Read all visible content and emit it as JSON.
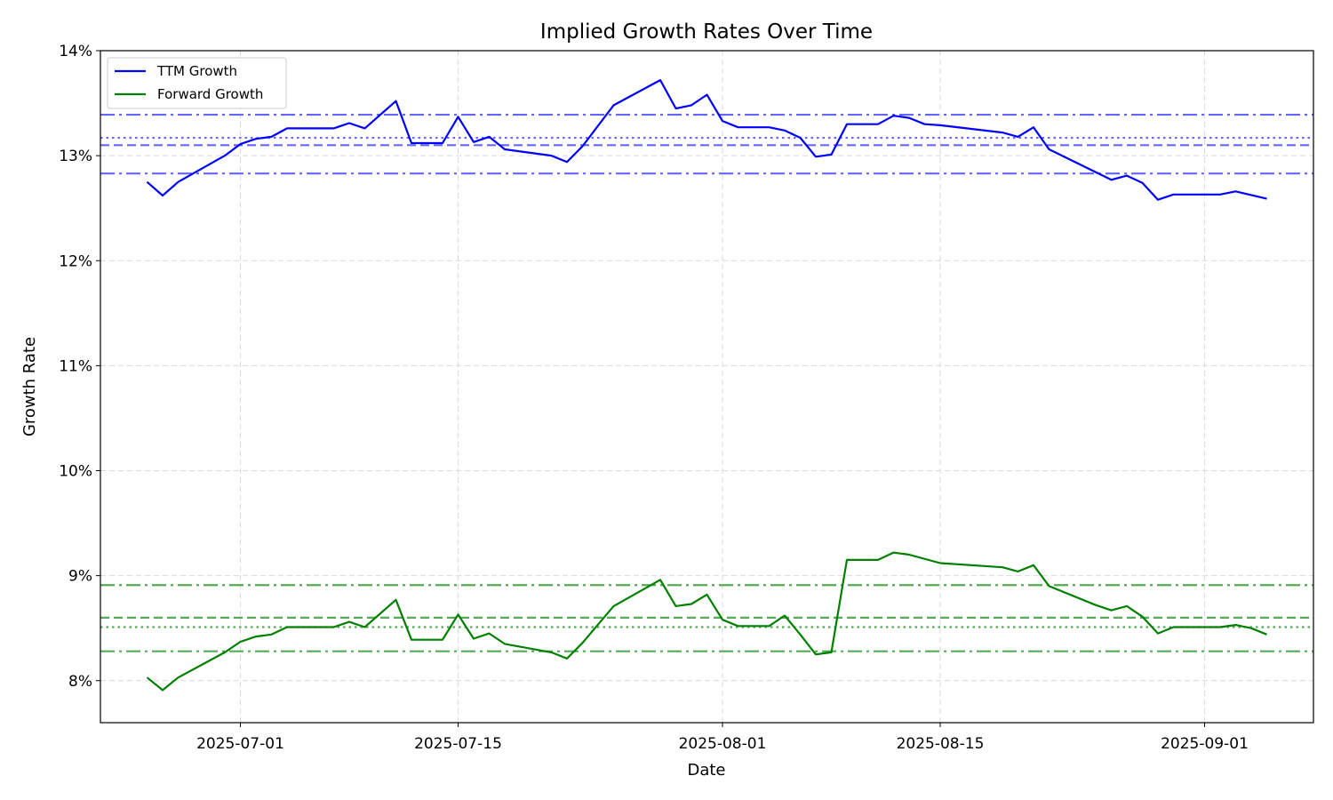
{
  "chart_data": {
    "type": "line",
    "title": "Implied Growth Rates Over Time",
    "xlabel": "Date",
    "ylabel": "Growth Rate",
    "xlim": [
      "2025-06-22",
      "2025-09-08"
    ],
    "ylim": [
      7.6,
      14.0
    ],
    "y_ticks": [
      8,
      9,
      10,
      11,
      12,
      13,
      14
    ],
    "y_tick_format": "%",
    "x_ticks": [
      "2025-07-01",
      "2025-07-15",
      "2025-08-01",
      "2025-08-15",
      "2025-09-01"
    ],
    "grid": true,
    "legend_position": "top-left",
    "series": [
      {
        "name": "TTM Growth",
        "color": "#0000ff",
        "points": [
          [
            "2025-06-25",
            12.75
          ],
          [
            "2025-06-26",
            12.62
          ],
          [
            "2025-06-27",
            12.75
          ],
          [
            "2025-06-30",
            13.0
          ],
          [
            "2025-07-01",
            13.11
          ],
          [
            "2025-07-02",
            13.16
          ],
          [
            "2025-07-03",
            13.18
          ],
          [
            "2025-07-04",
            13.26
          ],
          [
            "2025-07-07",
            13.26
          ],
          [
            "2025-07-08",
            13.31
          ],
          [
            "2025-07-09",
            13.26
          ],
          [
            "2025-07-11",
            13.52
          ],
          [
            "2025-07-12",
            13.12
          ],
          [
            "2025-07-14",
            13.12
          ],
          [
            "2025-07-15",
            13.37
          ],
          [
            "2025-07-16",
            13.13
          ],
          [
            "2025-07-17",
            13.18
          ],
          [
            "2025-07-18",
            13.06
          ],
          [
            "2025-07-21",
            13.0
          ],
          [
            "2025-07-22",
            12.94
          ],
          [
            "2025-07-23",
            13.09
          ],
          [
            "2025-07-25",
            13.48
          ],
          [
            "2025-07-28",
            13.72
          ],
          [
            "2025-07-29",
            13.45
          ],
          [
            "2025-07-30",
            13.48
          ],
          [
            "2025-07-31",
            13.58
          ],
          [
            "2025-08-01",
            13.33
          ],
          [
            "2025-08-02",
            13.27
          ],
          [
            "2025-08-04",
            13.27
          ],
          [
            "2025-08-05",
            13.24
          ],
          [
            "2025-08-06",
            13.17
          ],
          [
            "2025-08-07",
            12.99
          ],
          [
            "2025-08-08",
            13.01
          ],
          [
            "2025-08-09",
            13.3
          ],
          [
            "2025-08-11",
            13.3
          ],
          [
            "2025-08-12",
            13.38
          ],
          [
            "2025-08-13",
            13.36
          ],
          [
            "2025-08-14",
            13.3
          ],
          [
            "2025-08-15",
            13.29
          ],
          [
            "2025-08-19",
            13.22
          ],
          [
            "2025-08-20",
            13.18
          ],
          [
            "2025-08-21",
            13.27
          ],
          [
            "2025-08-22",
            13.06
          ],
          [
            "2025-08-26",
            12.77
          ],
          [
            "2025-08-27",
            12.81
          ],
          [
            "2025-08-28",
            12.74
          ],
          [
            "2025-08-29",
            12.58
          ],
          [
            "2025-08-30",
            12.63
          ],
          [
            "2025-09-02",
            12.63
          ],
          [
            "2025-09-03",
            12.66
          ],
          [
            "2025-09-05",
            12.59
          ]
        ]
      },
      {
        "name": "Forward Growth",
        "color": "#008000",
        "points": [
          [
            "2025-06-25",
            8.03
          ],
          [
            "2025-06-26",
            7.91
          ],
          [
            "2025-06-27",
            8.03
          ],
          [
            "2025-06-30",
            8.27
          ],
          [
            "2025-07-01",
            8.37
          ],
          [
            "2025-07-02",
            8.42
          ],
          [
            "2025-07-03",
            8.44
          ],
          [
            "2025-07-04",
            8.51
          ],
          [
            "2025-07-07",
            8.51
          ],
          [
            "2025-07-08",
            8.56
          ],
          [
            "2025-07-09",
            8.51
          ],
          [
            "2025-07-11",
            8.77
          ],
          [
            "2025-07-12",
            8.39
          ],
          [
            "2025-07-14",
            8.39
          ],
          [
            "2025-07-15",
            8.63
          ],
          [
            "2025-07-16",
            8.4
          ],
          [
            "2025-07-17",
            8.45
          ],
          [
            "2025-07-18",
            8.35
          ],
          [
            "2025-07-21",
            8.27
          ],
          [
            "2025-07-22",
            8.21
          ],
          [
            "2025-07-23",
            8.36
          ],
          [
            "2025-07-25",
            8.71
          ],
          [
            "2025-07-28",
            8.96
          ],
          [
            "2025-07-29",
            8.71
          ],
          [
            "2025-07-30",
            8.73
          ],
          [
            "2025-07-31",
            8.82
          ],
          [
            "2025-08-01",
            8.58
          ],
          [
            "2025-08-02",
            8.52
          ],
          [
            "2025-08-04",
            8.52
          ],
          [
            "2025-08-05",
            8.62
          ],
          [
            "2025-08-06",
            8.44
          ],
          [
            "2025-08-07",
            8.25
          ],
          [
            "2025-08-08",
            8.27
          ],
          [
            "2025-08-09",
            9.15
          ],
          [
            "2025-08-11",
            9.15
          ],
          [
            "2025-08-12",
            9.22
          ],
          [
            "2025-08-13",
            9.2
          ],
          [
            "2025-08-15",
            9.12
          ],
          [
            "2025-08-19",
            9.08
          ],
          [
            "2025-08-20",
            9.04
          ],
          [
            "2025-08-21",
            9.1
          ],
          [
            "2025-08-22",
            8.9
          ],
          [
            "2025-08-25",
            8.72
          ],
          [
            "2025-08-26",
            8.67
          ],
          [
            "2025-08-27",
            8.71
          ],
          [
            "2025-08-28",
            8.61
          ],
          [
            "2025-08-29",
            8.45
          ],
          [
            "2025-08-30",
            8.51
          ],
          [
            "2025-09-02",
            8.51
          ],
          [
            "2025-09-03",
            8.53
          ],
          [
            "2025-09-04",
            8.5
          ],
          [
            "2025-09-05",
            8.44
          ]
        ]
      }
    ],
    "reference_lines": [
      {
        "value": 13.1,
        "color": "#6666ff",
        "style": "dashed"
      },
      {
        "value": 13.17,
        "color": "#6666ff",
        "style": "dotted"
      },
      {
        "value": 13.39,
        "color": "#6666ff",
        "style": "dashdot"
      },
      {
        "value": 12.83,
        "color": "#6666ff",
        "style": "dashdot"
      },
      {
        "value": 8.6,
        "color": "#55aa55",
        "style": "dashed"
      },
      {
        "value": 8.51,
        "color": "#55aa55",
        "style": "dotted"
      },
      {
        "value": 8.91,
        "color": "#55aa55",
        "style": "dashdot"
      },
      {
        "value": 8.28,
        "color": "#55aa55",
        "style": "dashdot"
      }
    ]
  }
}
